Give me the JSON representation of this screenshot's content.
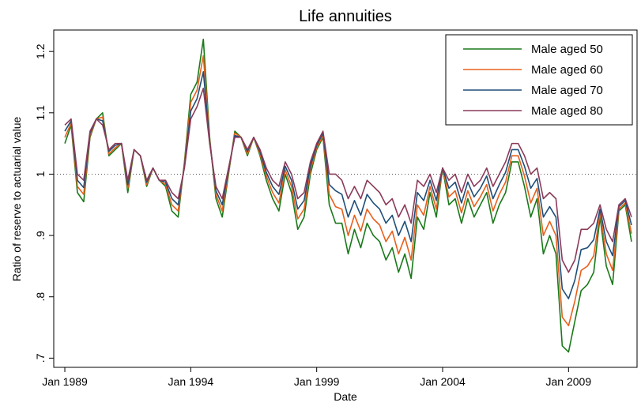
{
  "chart_data": {
    "type": "line",
    "title": "Life annuities",
    "x_label": "Date",
    "y_label": "Ratio of reserve to actuarial value",
    "x": [
      1989,
      1989.25,
      1989.5,
      1989.75,
      1990,
      1990.25,
      1990.5,
      1990.75,
      1991,
      1991.25,
      1991.5,
      1991.75,
      1992,
      1992.25,
      1992.5,
      1992.75,
      1993,
      1993.25,
      1993.5,
      1993.75,
      1994,
      1994.25,
      1994.5,
      1994.75,
      1995,
      1995.25,
      1995.5,
      1995.75,
      1996,
      1996.25,
      1996.5,
      1996.75,
      1997,
      1997.25,
      1997.5,
      1997.75,
      1998,
      1998.25,
      1998.5,
      1998.75,
      1999,
      1999.25,
      1999.5,
      1999.75,
      2000,
      2000.25,
      2000.5,
      2000.75,
      2001,
      2001.25,
      2001.5,
      2001.75,
      2002,
      2002.25,
      2002.5,
      2002.75,
      2003,
      2003.25,
      2003.5,
      2003.75,
      2004,
      2004.25,
      2004.5,
      2004.75,
      2005,
      2005.25,
      2005.5,
      2005.75,
      2006,
      2006.25,
      2006.5,
      2006.75,
      2007,
      2007.25,
      2007.5,
      2007.75,
      2008,
      2008.25,
      2008.5,
      2008.75,
      2009,
      2009.25,
      2009.5,
      2009.75,
      2010,
      2010.25,
      2010.5,
      2010.75,
      2011,
      2011.25,
      2011.5
    ],
    "series": [
      {
        "name": "Male aged 50",
        "color": "#1a7a1a",
        "values": [
          1.05,
          1.08,
          0.97,
          0.955,
          1.06,
          1.09,
          1.1,
          1.03,
          1.04,
          1.05,
          0.97,
          1.04,
          1.03,
          0.98,
          1.01,
          0.99,
          0.98,
          0.94,
          0.93,
          1.02,
          1.13,
          1.15,
          1.22,
          1.06,
          0.96,
          0.93,
          1.0,
          1.07,
          1.06,
          1.03,
          1.06,
          1.03,
          0.99,
          0.96,
          0.94,
          1.0,
          0.97,
          0.91,
          0.93,
          1.0,
          1.04,
          1.06,
          0.95,
          0.92,
          0.92,
          0.87,
          0.91,
          0.88,
          0.92,
          0.9,
          0.89,
          0.86,
          0.88,
          0.84,
          0.87,
          0.83,
          0.93,
          0.91,
          0.97,
          0.93,
          1.01,
          0.95,
          0.96,
          0.92,
          0.96,
          0.93,
          0.95,
          0.97,
          0.92,
          0.95,
          0.97,
          1.02,
          1.02,
          0.98,
          0.93,
          0.96,
          0.87,
          0.9,
          0.87,
          0.72,
          0.71,
          0.76,
          0.81,
          0.82,
          0.84,
          0.93,
          0.85,
          0.82,
          0.94,
          0.95,
          0.89
        ]
      },
      {
        "name": "Male aged 60",
        "color": "#e8601c",
        "values": [
          1.06,
          1.083,
          0.98,
          0.967,
          1.063,
          1.09,
          1.093,
          1.033,
          1.043,
          1.05,
          0.977,
          1.04,
          1.03,
          0.983,
          1.01,
          0.99,
          0.983,
          0.95,
          0.94,
          1.017,
          1.117,
          1.137,
          1.193,
          1.057,
          0.967,
          0.94,
          1.003,
          1.067,
          1.06,
          1.033,
          1.06,
          1.033,
          0.997,
          0.97,
          0.953,
          1.007,
          0.98,
          0.927,
          0.943,
          1.007,
          1.043,
          1.063,
          0.967,
          0.947,
          0.943,
          0.9,
          0.933,
          0.907,
          0.943,
          0.927,
          0.917,
          0.89,
          0.907,
          0.87,
          0.897,
          0.86,
          0.95,
          0.933,
          0.98,
          0.943,
          1.01,
          0.963,
          0.973,
          0.937,
          0.973,
          0.947,
          0.963,
          0.983,
          0.94,
          0.967,
          0.987,
          1.03,
          1.03,
          0.997,
          0.953,
          0.977,
          0.9,
          0.923,
          0.9,
          0.767,
          0.753,
          0.793,
          0.843,
          0.85,
          0.867,
          0.937,
          0.87,
          0.843,
          0.943,
          0.953,
          0.903
        ]
      },
      {
        "name": "Male aged 70",
        "color": "#1f4e79",
        "values": [
          1.07,
          1.087,
          0.99,
          0.978,
          1.067,
          1.09,
          1.087,
          1.037,
          1.047,
          1.05,
          0.983,
          1.04,
          1.03,
          0.987,
          1.01,
          0.99,
          0.987,
          0.96,
          0.95,
          1.013,
          1.103,
          1.123,
          1.167,
          1.053,
          0.973,
          0.95,
          1.007,
          1.063,
          1.06,
          1.037,
          1.06,
          1.037,
          1.003,
          0.98,
          0.967,
          1.013,
          0.99,
          0.943,
          0.957,
          1.013,
          1.047,
          1.067,
          0.983,
          0.973,
          0.967,
          0.93,
          0.957,
          0.933,
          0.967,
          0.953,
          0.943,
          0.92,
          0.933,
          0.9,
          0.923,
          0.89,
          0.97,
          0.957,
          0.99,
          0.957,
          1.01,
          0.977,
          0.987,
          0.953,
          0.987,
          0.963,
          0.977,
          0.997,
          0.96,
          0.983,
          1.003,
          1.04,
          1.04,
          1.013,
          0.977,
          0.993,
          0.93,
          0.947,
          0.93,
          0.813,
          0.797,
          0.827,
          0.877,
          0.88,
          0.893,
          0.943,
          0.89,
          0.867,
          0.947,
          0.957,
          0.917
        ]
      },
      {
        "name": "Male aged 80",
        "color": "#8b3a5a",
        "values": [
          1.08,
          1.09,
          1.0,
          0.99,
          1.07,
          1.09,
          1.08,
          1.04,
          1.05,
          1.05,
          0.99,
          1.04,
          1.03,
          0.99,
          1.01,
          0.99,
          0.99,
          0.97,
          0.96,
          1.01,
          1.09,
          1.11,
          1.14,
          1.05,
          0.98,
          0.96,
          1.01,
          1.06,
          1.06,
          1.04,
          1.06,
          1.04,
          1.01,
          0.99,
          0.98,
          1.02,
          1.0,
          0.96,
          0.97,
          1.02,
          1.05,
          1.07,
          1.0,
          1.0,
          0.99,
          0.96,
          0.98,
          0.96,
          0.99,
          0.98,
          0.97,
          0.95,
          0.96,
          0.93,
          0.95,
          0.92,
          0.99,
          0.98,
          1.0,
          0.97,
          1.01,
          0.99,
          1.0,
          0.97,
          1.0,
          0.98,
          0.99,
          1.01,
          0.98,
          1.0,
          1.02,
          1.05,
          1.05,
          1.03,
          1.0,
          1.01,
          0.96,
          0.97,
          0.96,
          0.86,
          0.84,
          0.86,
          0.91,
          0.91,
          0.92,
          0.95,
          0.91,
          0.89,
          0.95,
          0.96,
          0.93
        ]
      }
    ],
    "xlim": [
      1988.56,
      2011.72
    ],
    "xticks": [
      {
        "value": 1989,
        "label": "Jan 1989"
      },
      {
        "value": 1994,
        "label": "Jan 1994"
      },
      {
        "value": 1999,
        "label": "Jan 1999"
      },
      {
        "value": 2004,
        "label": "Jan 2004"
      },
      {
        "value": 2009,
        "label": "Jan 2009"
      }
    ],
    "ylim": [
      0.685,
      1.235
    ],
    "yticks": [
      {
        "value": 0.7,
        "label": ".7"
      },
      {
        "value": 0.8,
        "label": ".8"
      },
      {
        "value": 0.9,
        "label": ".9"
      },
      1,
      1.1,
      1.2
    ],
    "reference_line": 1,
    "legend": "top-right"
  }
}
